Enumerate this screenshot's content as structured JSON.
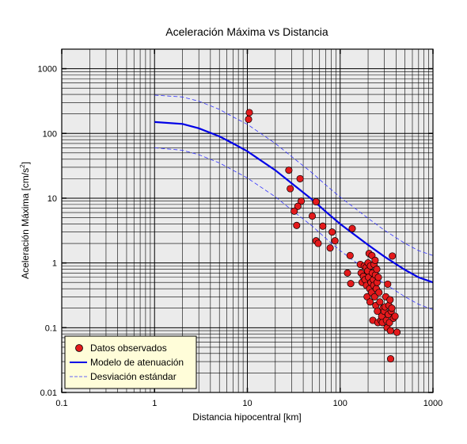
{
  "chart_data": {
    "type": "scatter",
    "title": "Aceleración Máxima vs Distancia",
    "xlabel": "Distancia hipocentral [km]",
    "ylabel_main": "Aceleración Máxima [cm/s",
    "ylabel_sup": "2",
    "ylabel_end": "]",
    "x_scale": "log",
    "y_scale": "log",
    "xlim": [
      0.1,
      1000
    ],
    "ylim": [
      0.01,
      2000
    ],
    "x_ticks": [
      {
        "value": 0.1,
        "label": "0.1"
      },
      {
        "value": 1,
        "label": "1"
      },
      {
        "value": 10,
        "label": "10"
      },
      {
        "value": 100,
        "label": "100"
      },
      {
        "value": 1000,
        "label": "1000"
      }
    ],
    "y_ticks": [
      {
        "value": 0.01,
        "label": "0.01"
      },
      {
        "value": 0.1,
        "label": "0.1"
      },
      {
        "value": 1,
        "label": "1"
      },
      {
        "value": 10,
        "label": "10"
      },
      {
        "value": 100,
        "label": "100"
      },
      {
        "value": 1000,
        "label": "1000"
      }
    ],
    "grid": true,
    "legend_position": "bottom-left",
    "colors": {
      "plot_background": "#ebebeb",
      "grid": "#000000",
      "points": "#e31a1c",
      "model": "#0000e6",
      "deviation": "#3333ff",
      "legend_background": "#fffdd9"
    },
    "series": [
      {
        "name": "Datos observados",
        "kind": "scatter",
        "points": [
          [
            10.5,
            210
          ],
          [
            10.3,
            165
          ],
          [
            28,
            27
          ],
          [
            29,
            14
          ],
          [
            37,
            20
          ],
          [
            38,
            9
          ],
          [
            35,
            7.5
          ],
          [
            32,
            6.3
          ],
          [
            34,
            3.8
          ],
          [
            50,
            5.3
          ],
          [
            55,
            8.8
          ],
          [
            55,
            2.2
          ],
          [
            58,
            2.0
          ],
          [
            65,
            3.7
          ],
          [
            78,
            1.7
          ],
          [
            82,
            3.0
          ],
          [
            88,
            2.2
          ],
          [
            120,
            0.7
          ],
          [
            130,
            0.48
          ],
          [
            135,
            3.4
          ],
          [
            128,
            1.3
          ],
          [
            165,
            0.95
          ],
          [
            168,
            0.7
          ],
          [
            172,
            0.5
          ],
          [
            178,
            0.62
          ],
          [
            182,
            0.9
          ],
          [
            185,
            0.55
          ],
          [
            190,
            0.85
          ],
          [
            192,
            0.45
          ],
          [
            195,
            0.3
          ],
          [
            198,
            0.75
          ],
          [
            200,
            1.0
          ],
          [
            202,
            0.6
          ],
          [
            205,
            1.4
          ],
          [
            208,
            0.4
          ],
          [
            210,
            0.25
          ],
          [
            212,
            0.9
          ],
          [
            215,
            0.5
          ],
          [
            218,
            0.35
          ],
          [
            220,
            1.3
          ],
          [
            222,
            0.7
          ],
          [
            225,
            0.13
          ],
          [
            228,
            0.55
          ],
          [
            230,
            0.45
          ],
          [
            232,
            0.95
          ],
          [
            235,
            0.3
          ],
          [
            238,
            1.1
          ],
          [
            240,
            0.65
          ],
          [
            242,
            0.22
          ],
          [
            245,
            0.4
          ],
          [
            248,
            0.8
          ],
          [
            250,
            0.5
          ],
          [
            252,
            0.18
          ],
          [
            255,
            0.12
          ],
          [
            258,
            0.6
          ],
          [
            262,
            0.35
          ],
          [
            268,
            0.25
          ],
          [
            275,
            0.13
          ],
          [
            280,
            0.15
          ],
          [
            285,
            0.12
          ],
          [
            290,
            0.2
          ],
          [
            298,
            0.18
          ],
          [
            305,
            0.21
          ],
          [
            310,
            0.3
          ],
          [
            315,
            0.13
          ],
          [
            320,
            0.1
          ],
          [
            325,
            0.47
          ],
          [
            330,
            0.16
          ],
          [
            335,
            0.22
          ],
          [
            340,
            0.12
          ],
          [
            345,
            0.27
          ],
          [
            348,
            0.09
          ],
          [
            350,
            0.033
          ],
          [
            355,
            0.18
          ],
          [
            360,
            0.2
          ],
          [
            365,
            1.28
          ],
          [
            375,
            0.14
          ],
          [
            390,
            0.15
          ],
          [
            410,
            0.085
          ]
        ]
      },
      {
        "name": "Modelo de atenuación",
        "kind": "line",
        "x": [
          1,
          2,
          3,
          5,
          7,
          10,
          20,
          30,
          50,
          70,
          100,
          200,
          300,
          500,
          700,
          1000
        ],
        "y": [
          150,
          140,
          120,
          90,
          70,
          53,
          27,
          17,
          9.5,
          6.2,
          4.0,
          1.9,
          1.25,
          0.78,
          0.6,
          0.5
        ]
      },
      {
        "name": "Desviación estándar",
        "kind": "dashed",
        "x": [
          1,
          2,
          3,
          5,
          7,
          10,
          20,
          30,
          50,
          70,
          100,
          200,
          300,
          500,
          700,
          1000
        ],
        "y": [
          390,
          365,
          315,
          235,
          180,
          138,
          70,
          44,
          24.5,
          16,
          10.4,
          4.9,
          3.2,
          2.0,
          1.55,
          1.3
        ]
      },
      {
        "name": "",
        "kind": "dashed",
        "x": [
          1,
          2,
          3,
          5,
          7,
          10,
          20,
          30,
          50,
          70,
          100,
          200,
          300,
          500,
          700,
          1000
        ],
        "y": [
          60,
          55,
          47,
          35,
          27,
          20.5,
          10.5,
          6.6,
          3.7,
          2.4,
          1.55,
          0.74,
          0.48,
          0.3,
          0.23,
          0.19
        ]
      }
    ]
  }
}
